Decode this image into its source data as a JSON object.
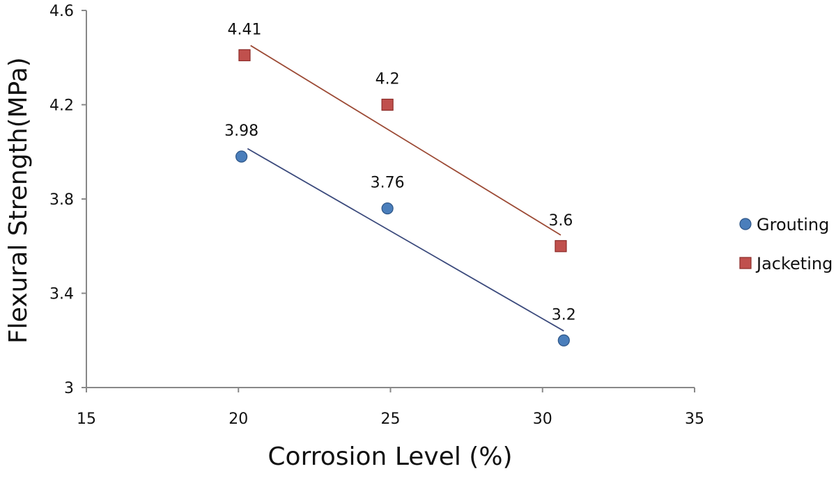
{
  "chart_data": {
    "type": "scatter",
    "title": "",
    "xlabel": "Corrosion Level (%)",
    "ylabel": "Flexural Strength(MPa)",
    "xlim": [
      15,
      35
    ],
    "ylim": [
      3,
      4.6
    ],
    "x_ticks": [
      "15",
      "20",
      "25",
      "30",
      "35"
    ],
    "y_ticks": [
      "3",
      "3.4",
      "3.8",
      "4.2",
      "4.6"
    ],
    "grid": false,
    "legend_position": "right",
    "trendlines": "linear",
    "series": [
      {
        "name": "Grouting",
        "marker": "circle",
        "color": "#4a7ebb",
        "line_color": "#3b4a7c",
        "x": [
          20.1,
          24.9,
          30.7
        ],
        "y": [
          3.98,
          3.76,
          3.2
        ],
        "labels": [
          "3.98",
          "3.76",
          "3.2"
        ]
      },
      {
        "name": "Jacketing",
        "marker": "square",
        "color": "#c0504d",
        "line_color": "#9c4a35",
        "x": [
          20.2,
          24.9,
          30.6
        ],
        "y": [
          4.41,
          4.2,
          3.6
        ],
        "labels": [
          "4.41",
          "4.2",
          "3.6"
        ]
      }
    ]
  }
}
